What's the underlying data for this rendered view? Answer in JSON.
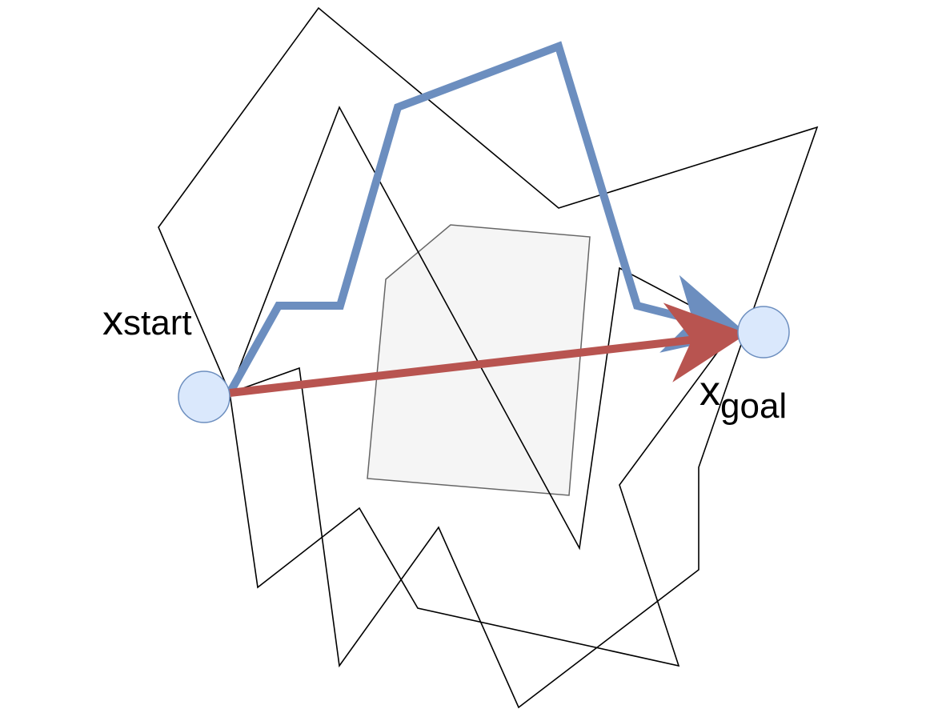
{
  "labels": {
    "start_main": "x",
    "start_sub": "start",
    "goal_main": "x",
    "goal_sub": "goal"
  },
  "colors": {
    "node_fill": "#dae8fc",
    "node_stroke": "#6c8ebf",
    "obstacle_fill": "#f5f5f5",
    "obstacle_stroke": "#666666",
    "blue_path": "#6c8ebf",
    "red_path": "#b85450",
    "random_walk": "#000000"
  }
}
